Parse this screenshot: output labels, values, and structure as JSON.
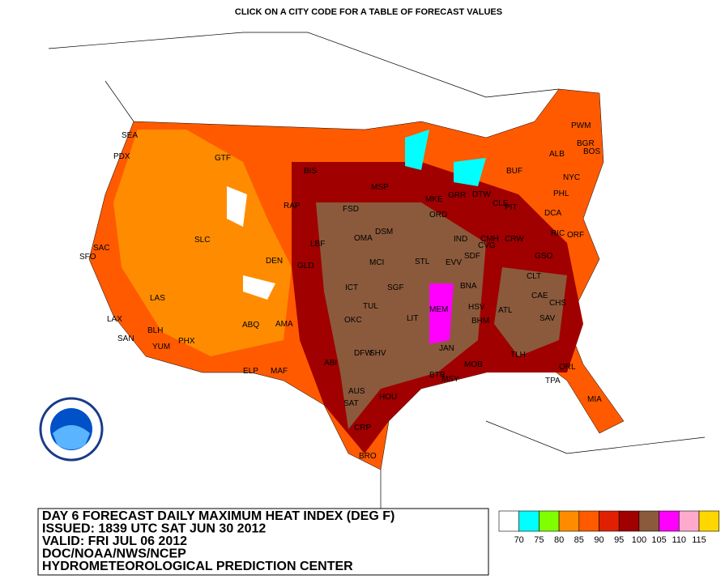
{
  "header": {
    "title": "CLICK ON A CITY CODE FOR A TABLE OF FORECAST VALUES"
  },
  "cities": [
    "SEA",
    "PDX",
    "GTF",
    "BIS",
    "RAP",
    "FSD",
    "MSP",
    "SAC",
    "SFO",
    "SLC",
    "DEN",
    "GLD",
    "LBF",
    "OMA",
    "DSM",
    "MCI",
    "STL",
    "ICT",
    "SGF",
    "TUL",
    "OKC",
    "LIT",
    "MEM",
    "BNA",
    "EVV",
    "SDF",
    "IND",
    "CVG",
    "ORD",
    "MKE",
    "GRR",
    "DTW",
    "CLE",
    "PIT",
    "CMH",
    "CRW",
    "LAS",
    "LAX",
    "SAN",
    "BLH",
    "YUM",
    "PHX",
    "ABQ",
    "AMA",
    "ELP",
    "MAF",
    "ABI",
    "DFW",
    "SHV",
    "JAN",
    "BTR",
    "MSY",
    "MOB",
    "BHM",
    "HSV",
    "ATL",
    "CAE",
    "CHS",
    "SAV",
    "TLH",
    "TPA",
    "ORL",
    "MIA",
    "AUS",
    "SAT",
    "HOU",
    "CRP",
    "BRO",
    "CLT",
    "GSO",
    "RIC",
    "ORF",
    "DCA",
    "PHL",
    "NYC",
    "BOS",
    "PWM",
    "BGR",
    "ALB",
    "BUF"
  ],
  "legend": {
    "colors": [
      "#ffffff",
      "#00ffff",
      "#80ff00",
      "#ff8c00",
      "#ff5a00",
      "#e02000",
      "#a00000",
      "#8b5a3c",
      "#ff00ff",
      "#ffaacc",
      "#ffd700"
    ],
    "labels": [
      70,
      75,
      80,
      85,
      90,
      95,
      100,
      105,
      110,
      115
    ]
  },
  "info": [
    "DAY 6 FORECAST DAILY MAXIMUM HEAT INDEX (DEG F)",
    "ISSUED: 1839 UTC SAT JUN 30 2012",
    "VALID: FRI JUL 06 2012",
    "DOC/NOAA/NWS/NCEP",
    "HYDROMETEOROLOGICAL PREDICTION CENTER"
  ]
}
